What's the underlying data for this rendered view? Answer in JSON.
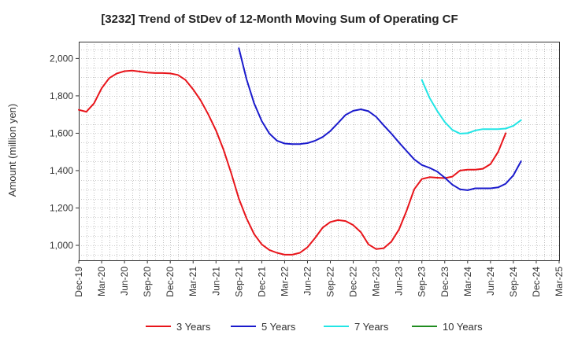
{
  "chart_data": {
    "type": "line",
    "title": "[3232]  Trend of StDev of 12-Month Moving Sum of Operating CF",
    "ylabel": "Amount (million yen)",
    "xlabel": "",
    "ylim": [
      920,
      2090
    ],
    "xrange": [
      "Dec-19",
      "Mar-25"
    ],
    "yticks": [
      1000,
      1200,
      1400,
      1600,
      1800,
      2000
    ],
    "ytick_labels": [
      "1,000",
      "1,200",
      "1,400",
      "1,600",
      "1,800",
      "2,000"
    ],
    "xtick_labels": [
      "Dec-19",
      "Mar-20",
      "Jun-20",
      "Sep-20",
      "Dec-20",
      "Mar-21",
      "Jun-21",
      "Sep-21",
      "Dec-21",
      "Mar-22",
      "Jun-22",
      "Sep-22",
      "Dec-22",
      "Mar-23",
      "Jun-23",
      "Sep-23",
      "Dec-23",
      "Mar-24",
      "Jun-24",
      "Sep-24",
      "Dec-24",
      "Mar-25"
    ],
    "grid": true,
    "legend_position": "bottom",
    "series": [
      {
        "name": "3 Years",
        "color": "#e8141a",
        "start": "Dec-19",
        "values": [
          1725,
          1715,
          1760,
          1840,
          1895,
          1920,
          1932,
          1935,
          1930,
          1925,
          1922,
          1922,
          1920,
          1912,
          1885,
          1835,
          1775,
          1700,
          1615,
          1510,
          1385,
          1250,
          1145,
          1060,
          1005,
          975,
          960,
          950,
          950,
          960,
          990,
          1040,
          1095,
          1125,
          1135,
          1130,
          1108,
          1070,
          1005,
          980,
          985,
          1020,
          1085,
          1185,
          1300,
          1355,
          1365,
          1362,
          1360,
          1368,
          1400,
          1405,
          1405,
          1410,
          1435,
          1500,
          1600
        ]
      },
      {
        "name": "5 Years",
        "color": "#1a1acc",
        "start": "Sep-21",
        "values": [
          2055,
          1890,
          1760,
          1665,
          1598,
          1560,
          1545,
          1542,
          1542,
          1547,
          1560,
          1580,
          1612,
          1655,
          1698,
          1720,
          1728,
          1718,
          1688,
          1642,
          1598,
          1550,
          1505,
          1460,
          1430,
          1415,
          1395,
          1362,
          1325,
          1300,
          1295,
          1305,
          1305,
          1305,
          1310,
          1330,
          1375,
          1450
        ]
      },
      {
        "name": "7 Years",
        "color": "#22e5e5",
        "start": "Sep-23",
        "values": [
          1885,
          1790,
          1720,
          1660,
          1618,
          1598,
          1600,
          1615,
          1622,
          1622,
          1622,
          1625,
          1640,
          1670
        ]
      },
      {
        "name": "10 Years",
        "color": "#1f8c1f",
        "start": "",
        "values": []
      }
    ]
  }
}
